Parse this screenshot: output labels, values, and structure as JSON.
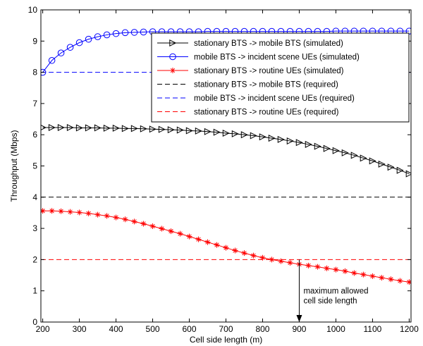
{
  "chart_data": {
    "type": "line",
    "xlabel": "Cell side length (m)",
    "ylabel": "Throughput (Mbps)",
    "xlim": [
      195,
      1205
    ],
    "ylim": [
      0,
      10
    ],
    "xticks": [
      200,
      300,
      400,
      500,
      600,
      700,
      800,
      900,
      1000,
      1100,
      1200
    ],
    "yticks": [
      0,
      1,
      2,
      3,
      4,
      5,
      6,
      7,
      8,
      9,
      10
    ],
    "grid": false,
    "legend_position": "top-right",
    "series": [
      {
        "name": "stationary BTS -> mobile BTS (simulated)",
        "color": "#000000",
        "marker": "triangle-right",
        "line": "solid",
        "x": [
          200,
          225,
          250,
          275,
          300,
          325,
          350,
          375,
          400,
          425,
          450,
          475,
          500,
          525,
          550,
          575,
          600,
          625,
          650,
          675,
          700,
          725,
          750,
          775,
          800,
          825,
          850,
          875,
          900,
          925,
          950,
          975,
          1000,
          1025,
          1050,
          1075,
          1100,
          1125,
          1150,
          1175,
          1200
        ],
        "y": [
          6.23,
          6.23,
          6.23,
          6.23,
          6.22,
          6.22,
          6.22,
          6.21,
          6.21,
          6.2,
          6.2,
          6.19,
          6.18,
          6.17,
          6.16,
          6.15,
          6.13,
          6.12,
          6.1,
          6.08,
          6.05,
          6.03,
          6.0,
          5.97,
          5.93,
          5.89,
          5.85,
          5.8,
          5.75,
          5.69,
          5.63,
          5.56,
          5.49,
          5.42,
          5.34,
          5.25,
          5.16,
          5.06,
          4.96,
          4.86,
          4.75
        ]
      },
      {
        "name": "mobile BTS -> incident scene UEs (simulated)",
        "color": "#0000ff",
        "marker": "circle",
        "line": "solid",
        "x": [
          200,
          225,
          250,
          275,
          300,
          325,
          350,
          375,
          400,
          425,
          450,
          475,
          500,
          525,
          550,
          575,
          600,
          625,
          650,
          675,
          700,
          725,
          750,
          775,
          800,
          825,
          850,
          875,
          900,
          925,
          950,
          975,
          1000,
          1025,
          1050,
          1075,
          1100,
          1125,
          1150,
          1175,
          1200
        ],
        "y": [
          8.0,
          8.38,
          8.62,
          8.8,
          8.95,
          9.06,
          9.14,
          9.2,
          9.24,
          9.27,
          9.28,
          9.29,
          9.3,
          9.3,
          9.3,
          9.3,
          9.3,
          9.3,
          9.31,
          9.31,
          9.31,
          9.31,
          9.31,
          9.31,
          9.31,
          9.31,
          9.31,
          9.31,
          9.31,
          9.31,
          9.31,
          9.31,
          9.32,
          9.32,
          9.32,
          9.32,
          9.32,
          9.32,
          9.32,
          9.32,
          9.32
        ]
      },
      {
        "name": "stationary BTS -> routine UEs (simulated)",
        "color": "#ff0000",
        "marker": "asterisk",
        "line": "solid",
        "x": [
          200,
          225,
          250,
          275,
          300,
          325,
          350,
          375,
          400,
          425,
          450,
          475,
          500,
          525,
          550,
          575,
          600,
          625,
          650,
          675,
          700,
          725,
          750,
          775,
          800,
          825,
          850,
          875,
          900,
          925,
          950,
          975,
          1000,
          1025,
          1050,
          1075,
          1100,
          1125,
          1150,
          1175,
          1200
        ],
        "y": [
          3.56,
          3.56,
          3.55,
          3.53,
          3.51,
          3.48,
          3.44,
          3.4,
          3.35,
          3.29,
          3.22,
          3.15,
          3.07,
          2.99,
          2.91,
          2.83,
          2.74,
          2.65,
          2.56,
          2.47,
          2.38,
          2.29,
          2.21,
          2.13,
          2.06,
          2.0,
          1.95,
          1.9,
          1.85,
          1.81,
          1.77,
          1.72,
          1.68,
          1.63,
          1.57,
          1.52,
          1.47,
          1.42,
          1.37,
          1.32,
          1.28
        ]
      },
      {
        "name": "stationary BTS -> mobile BTS (required)",
        "color": "#000000",
        "marker": "none",
        "line": "dashed",
        "x": [
          200,
          1200
        ],
        "y": [
          4,
          4
        ]
      },
      {
        "name": "mobile BTS -> incident scene UEs (required)",
        "color": "#0000ff",
        "marker": "none",
        "line": "dashed",
        "x": [
          200,
          1200
        ],
        "y": [
          8,
          8
        ]
      },
      {
        "name": "stationary BTS -> routine UEs (required)",
        "color": "#ff0000",
        "marker": "none",
        "line": "dashed",
        "x": [
          200,
          1200
        ],
        "y": [
          2,
          2
        ]
      }
    ],
    "annotations": [
      {
        "text_lines": [
          "maximum allowed",
          "cell side length"
        ],
        "arrow_x": 900,
        "arrow_from_y": 2,
        "arrow_to_y": 0
      }
    ]
  }
}
